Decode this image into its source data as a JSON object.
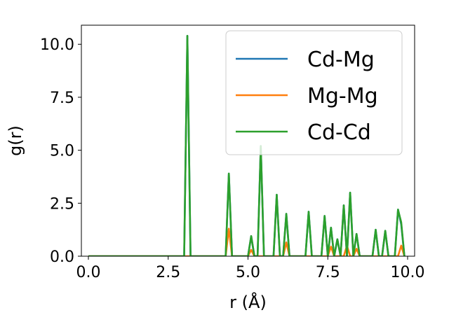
{
  "chart_data": {
    "type": "line",
    "xlabel": "r (Å)",
    "ylabel": "g(r)",
    "xlim": [
      -0.22,
      10.22
    ],
    "ylim": [
      0,
      10.9
    ],
    "xticks": [
      0.0,
      2.5,
      5.0,
      7.5,
      10.0
    ],
    "xtick_labels": [
      "0.0",
      "2.5",
      "5.0",
      "7.5",
      "10.0"
    ],
    "yticks": [
      0.0,
      2.5,
      5.0,
      7.5,
      10.0
    ],
    "ytick_labels": [
      "0.0",
      "2.5",
      "5.0",
      "7.5",
      "10.0"
    ],
    "grid": false,
    "legend_position": "top-right",
    "series": [
      {
        "name": "Cd-Mg",
        "color": "#1f77b4",
        "x": [
          0.0,
          2.9,
          3.0,
          3.1,
          3.2,
          3.3,
          4.3,
          4.4,
          4.5,
          5.0,
          5.1,
          5.2,
          5.3,
          5.4,
          5.5,
          5.8,
          5.9,
          6.0,
          6.1,
          6.2,
          6.3,
          6.8,
          6.9,
          7.0,
          7.3,
          7.4,
          7.5,
          7.6,
          7.7,
          7.8,
          7.9,
          8.0,
          8.1,
          8.2,
          8.3,
          8.4,
          8.5,
          8.9,
          9.0,
          9.1,
          9.2,
          9.3,
          9.4,
          9.6,
          9.7,
          9.8,
          9.9
        ],
        "y": [
          0.0,
          0.0,
          0.0,
          10.4,
          0.0,
          0.0,
          0.0,
          3.9,
          0.0,
          0.0,
          0.95,
          0.0,
          0.0,
          5.2,
          0.0,
          0.0,
          2.9,
          0.0,
          0.0,
          2.0,
          0.0,
          0.0,
          2.1,
          0.0,
          0.0,
          1.9,
          0.0,
          1.35,
          0.0,
          0.8,
          0.0,
          2.4,
          0.0,
          3.0,
          0.0,
          1.05,
          0.0,
          0.0,
          1.25,
          0.0,
          0.0,
          1.2,
          0.0,
          0.0,
          2.2,
          1.5,
          0.0
        ]
      },
      {
        "name": "Mg-Mg",
        "color": "#ff7f0e",
        "x": [
          0.0,
          4.3,
          4.4,
          4.5,
          5.0,
          5.1,
          5.2,
          6.1,
          6.2,
          6.3,
          7.5,
          7.6,
          7.7,
          8.0,
          8.1,
          8.2,
          8.3,
          8.4,
          8.5,
          9.7,
          9.8,
          9.9
        ],
        "y": [
          0.0,
          0.0,
          1.3,
          0.0,
          0.0,
          0.3,
          0.0,
          0.0,
          0.65,
          0.0,
          0.0,
          0.45,
          0.0,
          0.0,
          0.5,
          0.0,
          0.0,
          0.35,
          0.0,
          0.0,
          0.5,
          0.0
        ]
      },
      {
        "name": "Cd-Cd",
        "color": "#2ca02c",
        "x": [
          0.0,
          2.9,
          3.0,
          3.1,
          3.2,
          3.3,
          4.3,
          4.4,
          4.5,
          5.0,
          5.1,
          5.2,
          5.3,
          5.4,
          5.5,
          5.8,
          5.9,
          6.0,
          6.1,
          6.2,
          6.3,
          6.8,
          6.9,
          7.0,
          7.3,
          7.4,
          7.5,
          7.6,
          7.7,
          7.8,
          7.9,
          8.0,
          8.1,
          8.2,
          8.3,
          8.4,
          8.5,
          8.9,
          9.0,
          9.1,
          9.2,
          9.3,
          9.4,
          9.6,
          9.7,
          9.8,
          9.9
        ],
        "y": [
          0.0,
          0.0,
          0.0,
          10.4,
          0.0,
          0.0,
          0.0,
          3.9,
          0.0,
          0.0,
          0.95,
          0.0,
          0.0,
          5.2,
          0.0,
          0.0,
          2.9,
          0.0,
          0.0,
          2.0,
          0.0,
          0.0,
          2.1,
          0.0,
          0.0,
          1.9,
          0.0,
          1.35,
          0.0,
          0.8,
          0.0,
          2.4,
          0.0,
          3.0,
          0.0,
          1.05,
          0.0,
          0.0,
          1.25,
          0.0,
          0.0,
          1.2,
          0.0,
          0.0,
          2.2,
          1.6,
          0.0
        ]
      }
    ]
  }
}
